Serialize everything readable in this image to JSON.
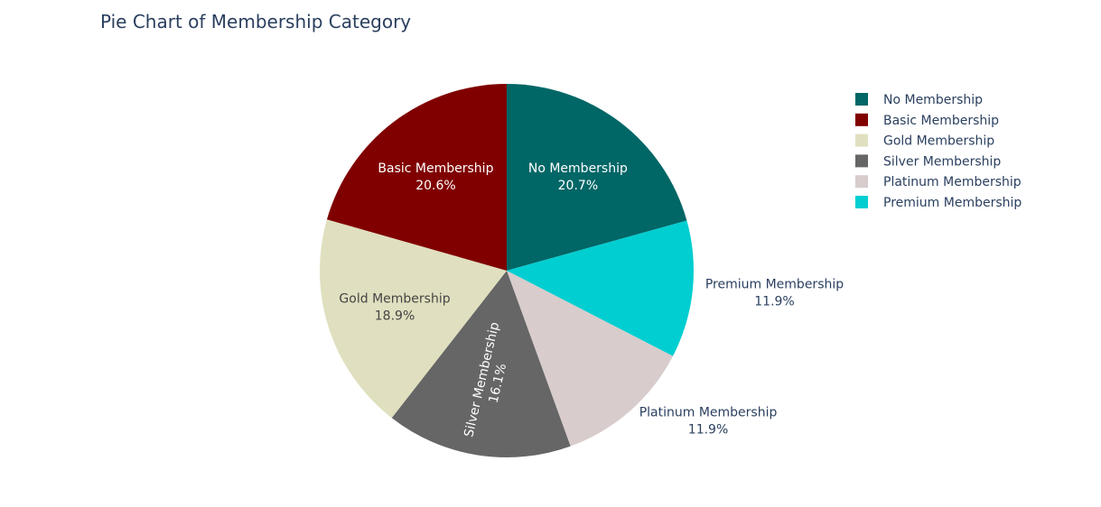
{
  "chart_data": {
    "type": "pie",
    "title": "Pie Chart of Membership Category",
    "legend_position": "top-right",
    "slices": [
      {
        "label": "No Membership",
        "percent": 20.7,
        "percent_text": "20.7%",
        "color": "#006666",
        "label_position": "inside",
        "label_color": "#ffffff"
      },
      {
        "label": "Premium Membership",
        "percent": 11.9,
        "percent_text": "11.9%",
        "color": "#00CED1",
        "label_position": "outside",
        "label_color": "#2a3f5f"
      },
      {
        "label": "Platinum Membership",
        "percent": 11.9,
        "percent_text": "11.9%",
        "color": "#D8CCCC",
        "label_position": "outside",
        "label_color": "#2a3f5f"
      },
      {
        "label": "Silver Membership",
        "percent": 16.1,
        "percent_text": "16.1%",
        "color": "#666666",
        "label_position": "inside-rotated",
        "label_color": "#ffffff"
      },
      {
        "label": "Gold Membership",
        "percent": 18.9,
        "percent_text": "18.9%",
        "color": "#E0E0C0",
        "label_position": "inside",
        "label_color": "#444444"
      },
      {
        "label": "Basic Membership",
        "percent": 20.6,
        "percent_text": "20.6%",
        "color": "#800000",
        "label_position": "inside",
        "label_color": "#ffffff"
      }
    ],
    "legend_order": [
      "No Membership",
      "Basic Membership",
      "Gold Membership",
      "Silver Membership",
      "Platinum Membership",
      "Premium Membership"
    ]
  }
}
